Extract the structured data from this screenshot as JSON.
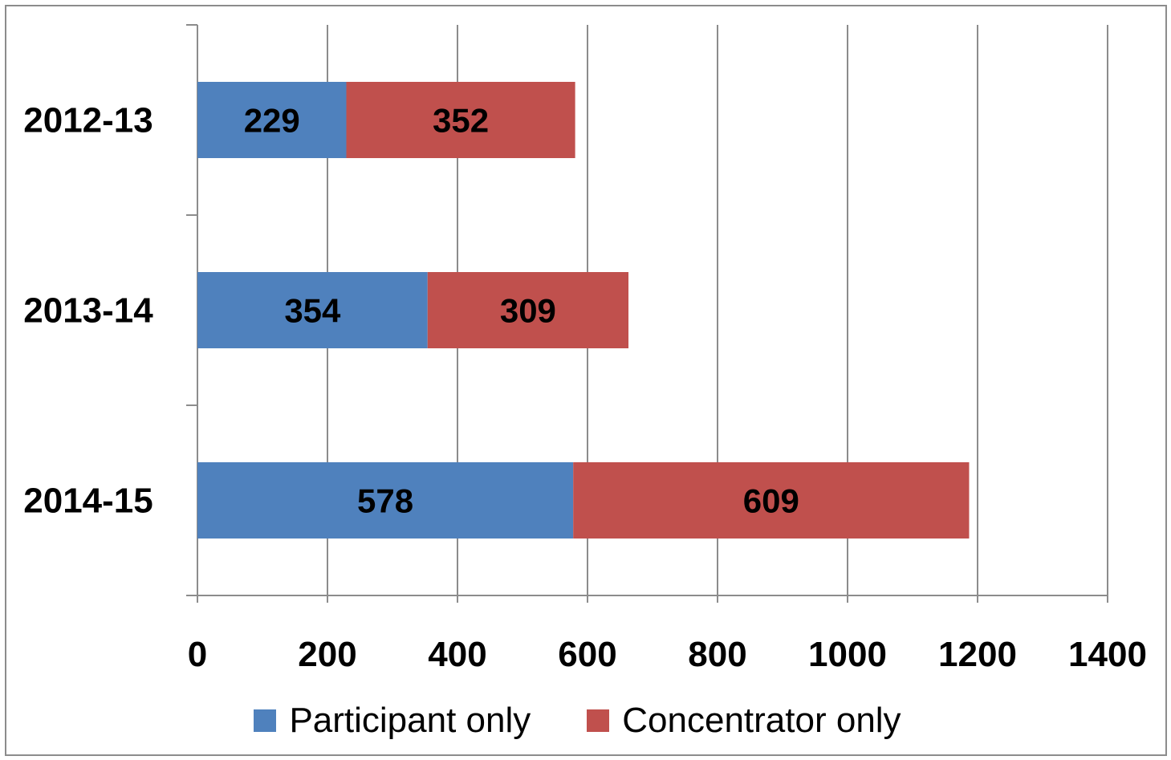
{
  "chart_data": {
    "type": "bar",
    "orientation": "horizontal",
    "stacked": true,
    "categories": [
      "2012-13",
      "2013-14",
      "2014-15"
    ],
    "series": [
      {
        "name": "Participant only",
        "color": "#4f81bd",
        "values": [
          229,
          354,
          578
        ]
      },
      {
        "name": "Concentrator only",
        "color": "#c0504d",
        "values": [
          352,
          309,
          609
        ]
      }
    ],
    "x_ticks": [
      "0",
      "200",
      "400",
      "600",
      "800",
      "1000",
      "1200",
      "1400"
    ],
    "xlim": [
      0,
      1400
    ],
    "grid": "vertical",
    "legend_position": "bottom",
    "data_labels": true
  }
}
